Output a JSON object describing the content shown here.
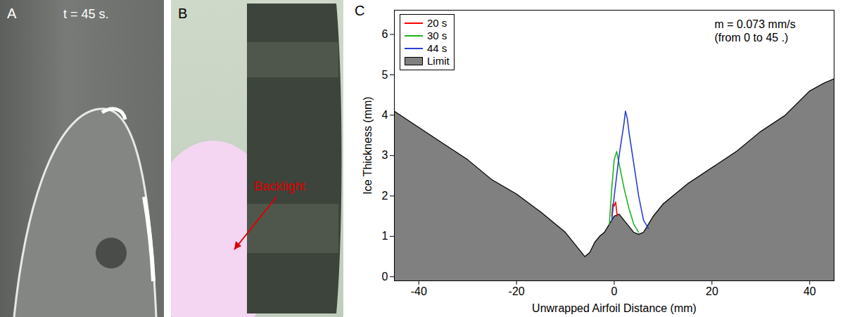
{
  "panels": [
    {
      "letter": "A",
      "label": "t = 45 s."
    },
    {
      "letter": "B",
      "label": "Backlight"
    }
  ],
  "chart_data": {
    "letter": "C",
    "type": "line",
    "xlabel": "Unwrapped Airfoil Distance (mm)",
    "ylabel": "Ice Thickness (mm)",
    "annotations": [
      "m = 0.073 mm/s",
      "(from 0 to 45 .)"
    ],
    "xlim": [
      -45,
      45
    ],
    "xticks": [
      -40,
      -20,
      0,
      20,
      40
    ],
    "ylim": [
      -0.1,
      6.6
    ],
    "yticks": [
      0,
      1,
      2,
      3,
      4,
      5,
      6
    ],
    "legend": "top-left",
    "series": [
      {
        "name": "20 s",
        "color": "#ff0000",
        "type": "line",
        "x": [
          -0.5,
          -0.3,
          0,
          0.3,
          0.6
        ],
        "values": [
          1.5,
          1.8,
          1.75,
          1.85,
          1.5
        ]
      },
      {
        "name": "30 s",
        "color": "#1db31d",
        "type": "line",
        "x": [
          -1,
          -0.5,
          0,
          0.5,
          1,
          2,
          3,
          4,
          5
        ],
        "values": [
          1.3,
          2.2,
          2.9,
          3.1,
          2.8,
          2.2,
          1.7,
          1.3,
          1.1
        ]
      },
      {
        "name": "44 s",
        "color": "#2a3fd6",
        "type": "line",
        "x": [
          -0.5,
          0,
          1,
          2,
          2.3,
          2.7,
          3,
          4,
          5,
          6,
          7
        ],
        "values": [
          1.4,
          2.0,
          3.0,
          3.8,
          4.1,
          3.9,
          3.6,
          2.8,
          2.0,
          1.4,
          1.2
        ]
      },
      {
        "name": "Limit",
        "color": "#808080",
        "type": "area",
        "x": [
          -45,
          -40,
          -35,
          -30,
          -25,
          -20,
          -15,
          -10,
          -8,
          -6,
          -5,
          -4,
          -3,
          -2,
          -1,
          0,
          1,
          2,
          3,
          4,
          5,
          6,
          7,
          8,
          10,
          15,
          20,
          25,
          30,
          35,
          40,
          43,
          45
        ],
        "values": [
          4.1,
          3.7,
          3.3,
          2.9,
          2.4,
          2.05,
          1.6,
          1.1,
          0.8,
          0.5,
          0.6,
          0.85,
          1.0,
          1.1,
          1.3,
          1.5,
          1.55,
          1.4,
          1.25,
          1.1,
          1.05,
          1.1,
          1.3,
          1.5,
          1.8,
          2.3,
          2.7,
          3.1,
          3.6,
          4.0,
          4.6,
          4.8,
          4.9
        ]
      }
    ]
  }
}
